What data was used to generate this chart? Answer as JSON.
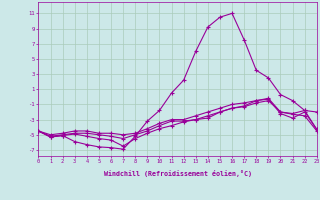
{
  "x": [
    0,
    1,
    2,
    3,
    4,
    5,
    6,
    7,
    8,
    9,
    10,
    11,
    12,
    13,
    14,
    15,
    16,
    17,
    18,
    19,
    20,
    21,
    22,
    23
  ],
  "line1": [
    -4.5,
    -5.3,
    -5.1,
    -5.9,
    -6.3,
    -6.6,
    -6.7,
    -6.9,
    -5.2,
    -3.2,
    -1.8,
    0.5,
    2.2,
    6.0,
    9.2,
    10.5,
    11.0,
    7.5,
    3.5,
    2.5,
    0.3,
    -0.5,
    -1.8,
    -2.0
  ],
  "line2": [
    -4.5,
    -5.3,
    -5.1,
    -4.9,
    -5.2,
    -5.5,
    -5.7,
    -6.5,
    -5.5,
    -4.8,
    -4.2,
    -3.8,
    -3.3,
    -3.0,
    -2.8,
    -2.0,
    -1.5,
    -1.3,
    -0.8,
    -0.5,
    -2.0,
    -2.3,
    -2.5,
    -4.5
  ],
  "line3": [
    -4.5,
    -5.2,
    -5.0,
    -4.8,
    -4.8,
    -5.0,
    -5.2,
    -5.5,
    -5.0,
    -4.5,
    -3.8,
    -3.2,
    -3.2,
    -3.0,
    -2.5,
    -2.0,
    -1.5,
    -1.2,
    -0.5,
    -0.2,
    -2.0,
    -2.2,
    -1.8,
    -4.3
  ],
  "line4": [
    -4.5,
    -5.0,
    -4.8,
    -4.5,
    -4.5,
    -4.8,
    -4.8,
    -5.0,
    -4.8,
    -4.2,
    -3.5,
    -3.0,
    -3.0,
    -2.5,
    -2.0,
    -1.5,
    -1.0,
    -0.8,
    -0.5,
    -0.3,
    -2.2,
    -2.8,
    -2.0,
    -4.3
  ],
  "line_color": "#990099",
  "bg_color": "#cce8e8",
  "grid_color": "#aaccbb",
  "xlabel": "Windchill (Refroidissement éolien,°C)",
  "yticks": [
    -7,
    -5,
    -3,
    -1,
    1,
    3,
    5,
    7,
    9,
    11
  ],
  "xlim": [
    0,
    23
  ],
  "ylim": [
    -7.8,
    12.5
  ]
}
